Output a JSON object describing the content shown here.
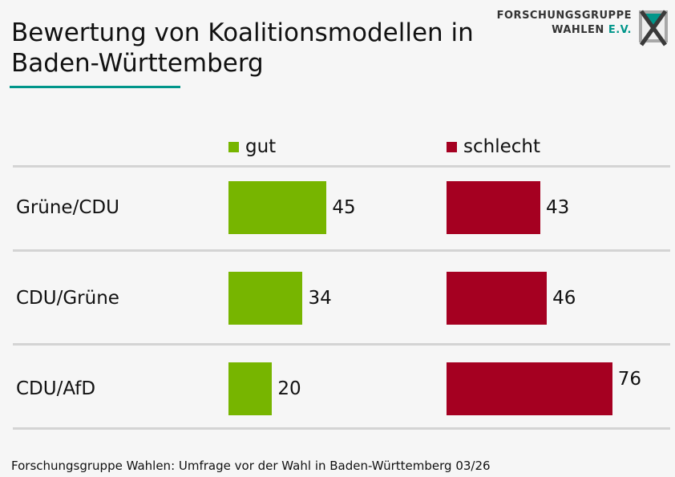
{
  "title_line1": "Bewertung von Koalitionsmodellen in",
  "title_line2": "Baden-Württemberg",
  "logo": {
    "line1": "FORSCHUNGSGRUPPE",
    "line2a": "WAHLEN",
    "line2b": "E.V."
  },
  "footer": "Forschungsgruppe Wahlen: Umfrage vor der Wahl in Baden-Württemberg 03/26",
  "colors": {
    "gut": "#77b500",
    "schlecht": "#a50021",
    "accent": "#00968a"
  },
  "chart_data": {
    "type": "bar",
    "title": "Bewertung von Koalitionsmodellen in Baden-Württemberg",
    "categories": [
      "Grüne/CDU",
      "CDU/Grüne",
      "CDU/AfD"
    ],
    "series": [
      {
        "name": "gut",
        "values": [
          45,
          34,
          20
        ]
      },
      {
        "name": "schlecht",
        "values": [
          43,
          46,
          76
        ]
      }
    ],
    "unit": "percent",
    "legend": "top"
  }
}
